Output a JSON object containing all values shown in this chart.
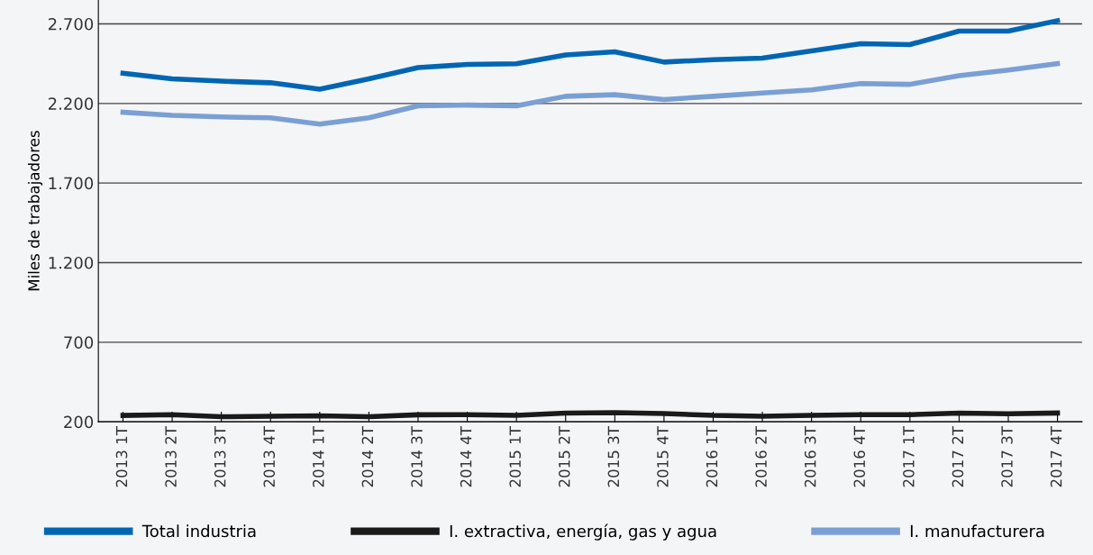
{
  "chart_data": {
    "type": "line",
    "ylabel": "Miles de trabajadores",
    "categories": [
      "2013 1T",
      "2013 2T",
      "2013 3T",
      "2013 4T",
      "2014 1T",
      "2014 2T",
      "2014 3T",
      "2014 4T",
      "2015 1T",
      "2015 2T",
      "2015 3T",
      "2015 4T",
      "2016 1T",
      "2016 2T",
      "2016 3T",
      "2016 4T",
      "2017 1T",
      "2017 2T",
      "2017 3T",
      "2017 4T"
    ],
    "series": [
      {
        "name": "Total industria",
        "color": "#0066b3",
        "values": [
          2390,
          2355,
          2340,
          2330,
          2290,
          2355,
          2425,
          2445,
          2450,
          2505,
          2525,
          2460,
          2475,
          2485,
          2530,
          2575,
          2570,
          2655,
          2655,
          2720
        ]
      },
      {
        "name": "I. extractiva, energía, gas y agua",
        "color": "#1a1a1a",
        "values": [
          240,
          245,
          232,
          235,
          238,
          232,
          244,
          245,
          240,
          255,
          258,
          252,
          240,
          235,
          240,
          245,
          245,
          255,
          250,
          255
        ]
      },
      {
        "name": "I. manufacturera",
        "color": "#7a9fd4",
        "values": [
          2145,
          2125,
          2115,
          2110,
          2070,
          2110,
          2185,
          2190,
          2185,
          2245,
          2255,
          2225,
          2245,
          2265,
          2285,
          2325,
          2320,
          2375,
          2410,
          2450
        ]
      }
    ],
    "ylim": [
      200,
      2850
    ],
    "yticks": [
      {
        "value": 200,
        "label": "200"
      },
      {
        "value": 700,
        "label": "700"
      },
      {
        "value": 1200,
        "label": "1.200"
      },
      {
        "value": 1700,
        "label": "1.700"
      },
      {
        "value": 2200,
        "label": "2.200"
      },
      {
        "value": 2700,
        "label": "2.700"
      }
    ],
    "grid": "y",
    "legend": "bottom",
    "marker": "none",
    "line_style": "solid"
  }
}
